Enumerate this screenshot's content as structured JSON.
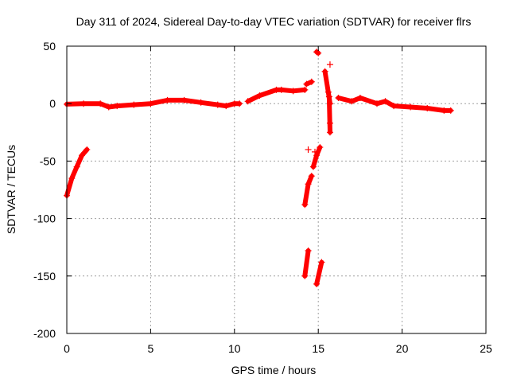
{
  "chart_data": {
    "type": "scatter",
    "title": "Day 311 of 2024, Sidereal Day-to-day VTEC variation (SDTVAR) for receiver flrs",
    "xlabel": "GPS time / hours",
    "ylabel": "SDTVAR / TECUs",
    "xlim": [
      0,
      25
    ],
    "ylim": [
      -200,
      50
    ],
    "xticks": [
      0,
      5,
      10,
      15,
      20,
      25
    ],
    "yticks": [
      -200,
      -150,
      -100,
      -50,
      0,
      50
    ],
    "xtick_labels": [
      "0",
      "5",
      "10",
      "15",
      "20",
      "25"
    ],
    "ytick_labels": [
      "-200",
      "-150",
      "-100",
      "-50",
      "0",
      "50"
    ],
    "grid": true,
    "marker": "+",
    "marker_color": "#ff0000",
    "series": [
      {
        "name": "SDTVAR",
        "segments": [
          [
            [
              0,
              -0.5
            ],
            [
              1,
              0
            ],
            [
              2,
              0
            ],
            [
              2.5,
              -3
            ],
            [
              3,
              -2
            ],
            [
              4,
              -1
            ],
            [
              5,
              0
            ],
            [
              6,
              3
            ],
            [
              7,
              3
            ],
            [
              8,
              1
            ],
            [
              9,
              -1
            ],
            [
              9.5,
              -2
            ],
            [
              10,
              0
            ],
            [
              10.3,
              0
            ]
          ],
          [
            [
              10.8,
              2
            ],
            [
              11.5,
              7
            ],
            [
              12.5,
              12
            ],
            [
              12.8,
              12
            ],
            [
              13.5,
              11
            ],
            [
              14.2,
              12
            ]
          ],
          [
            [
              14.3,
              17
            ],
            [
              14.6,
              19
            ]
          ],
          [
            [
              14.9,
              45
            ],
            [
              15.0,
              44
            ]
          ],
          [
            [
              15.4,
              28
            ],
            [
              15.6,
              10
            ],
            [
              15.7,
              0
            ]
          ],
          [
            [
              15.65,
              6
            ],
            [
              15.7,
              -25
            ]
          ],
          [
            [
              16.2,
              5
            ],
            [
              17,
              2
            ],
            [
              17.5,
              5
            ],
            [
              18.5,
              0
            ],
            [
              19,
              2
            ],
            [
              19.5,
              -2
            ],
            [
              20.5,
              -3
            ],
            [
              21.5,
              -4
            ],
            [
              22.5,
              -6
            ],
            [
              22.9,
              -6
            ]
          ],
          [
            [
              0,
              -80
            ],
            [
              0.3,
              -65
            ],
            [
              0.6,
              -55
            ],
            [
              0.9,
              -45
            ],
            [
              1.2,
              -40
            ]
          ],
          [
            [
              14.2,
              -88
            ],
            [
              14.4,
              -70
            ],
            [
              14.6,
              -63
            ]
          ],
          [
            [
              14.7,
              -55
            ],
            [
              14.9,
              -45
            ],
            [
              15.1,
              -38
            ]
          ],
          [
            [
              14.2,
              -150
            ],
            [
              14.4,
              -128
            ]
          ],
          [
            [
              14.9,
              -157
            ],
            [
              15.2,
              -138
            ]
          ]
        ],
        "points": [
          [
            15.7,
            34
          ],
          [
            14.4,
            -40
          ],
          [
            14.8,
            -42
          ],
          [
            15.7,
            -17
          ]
        ]
      }
    ]
  }
}
